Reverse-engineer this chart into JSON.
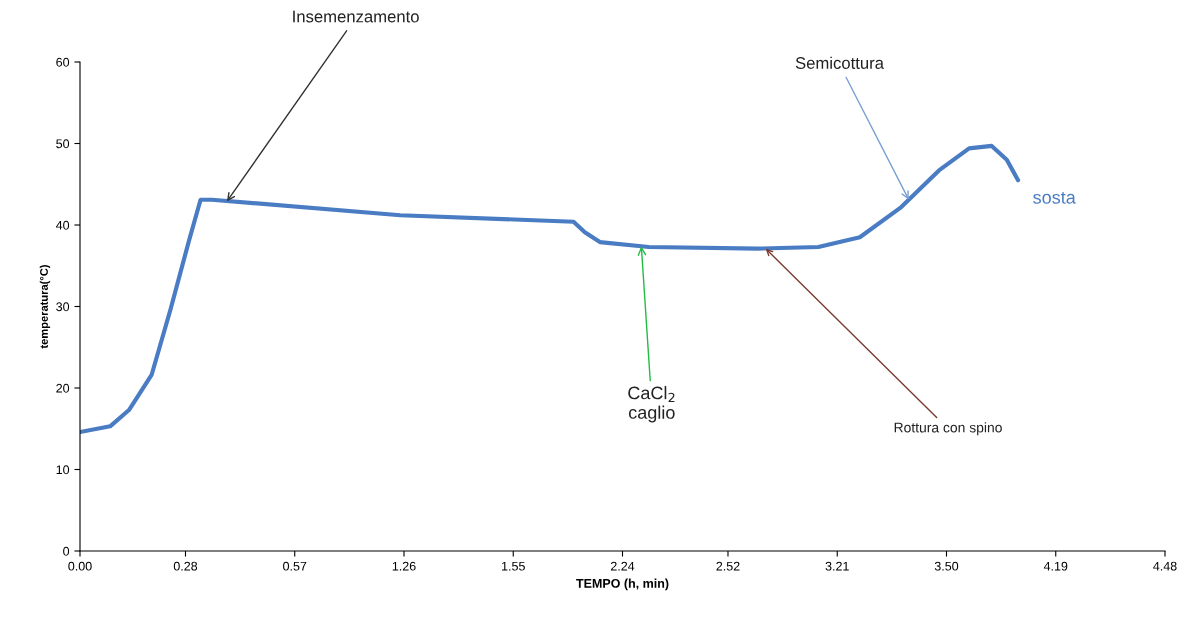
{
  "chart_data": {
    "type": "line",
    "xlabel": "TEMPO (h, min)",
    "ylabel": "temperatura(°C)",
    "x": [
      "2000-01-01T00:00",
      "2000-01-01T00:08",
      "2000-01-01T00:13",
      "2000-01-01T00:19",
      "2000-01-01T00:24",
      "2000-01-01T00:29",
      "2000-01-01T00:32",
      "2000-01-01T00:35",
      "2000-01-01T01:25",
      "2000-01-01T02:11",
      "2000-01-01T02:14",
      "2000-01-01T02:18",
      "2000-01-01T02:31",
      "2000-01-01T03:00",
      "2000-01-01T03:16",
      "2000-01-01T03:27",
      "2000-01-01T03:38",
      "2000-01-01T03:48",
      "2000-01-01T03:56",
      "2000-01-01T04:02",
      "2000-01-01T04:06",
      "2000-01-01T04:09"
    ],
    "series": [
      {
        "color": "#4a7cc4",
        "values": [
          14.6,
          15.3,
          17.3,
          21.6,
          29.6,
          38.2,
          43.1,
          43.1,
          41.2,
          40.4,
          39.1,
          37.9,
          37.3,
          37.1,
          37.3,
          38.5,
          42.2,
          46.7,
          49.4,
          49.7,
          48,
          45.5
        ]
      }
    ],
    "xlim": [
      "2000-01-01T00:00",
      "2000-01-01T04:48"
    ],
    "ylim": [
      0,
      60
    ],
    "xticks": [
      {
        "value": "2000-01-01T00:00",
        "label": "0.00"
      },
      {
        "value": "2000-01-01T00:28",
        "label": "0.28"
      },
      {
        "value": "2000-01-01T00:57",
        "label": "0.57"
      },
      {
        "value": "2000-01-01T01:26",
        "label": "1.26"
      },
      {
        "value": "2000-01-01T01:55",
        "label": "1.55"
      },
      {
        "value": "2000-01-01T02:24",
        "label": "2.24"
      },
      {
        "value": "2000-01-01T02:52",
        "label": "2.52"
      },
      {
        "value": "2000-01-01T03:21",
        "label": "3.21"
      },
      {
        "value": "2000-01-01T03:50",
        "label": "3.50"
      },
      {
        "value": "2000-01-01T04:19",
        "label": "4.19"
      },
      {
        "value": "2000-01-01T04:48",
        "label": "4.48"
      }
    ],
    "yticks": [
      0,
      10,
      20,
      30,
      40,
      50,
      60
    ],
    "annotations": [
      {
        "text": "Insemenzamento",
        "x": "2000-01-01T00:39",
        "y": 42.9
      },
      {
        "text": "Semicottura",
        "x": "2000-01-01T03:40",
        "y": 43.1
      },
      {
        "text": "CaCl$_{2}$\ncaglio",
        "x": "2000-01-01T02:29",
        "y": 37.4
      },
      {
        "text": "Rottura con spino",
        "x": "2000-01-01T03:02",
        "y": 37.1
      },
      {
        "text": "sosta",
        "x": "2000-01-01T04:09",
        "y": 45.5
      }
    ],
    "grid": false,
    "marker": "none",
    "line_style": "solid"
  }
}
